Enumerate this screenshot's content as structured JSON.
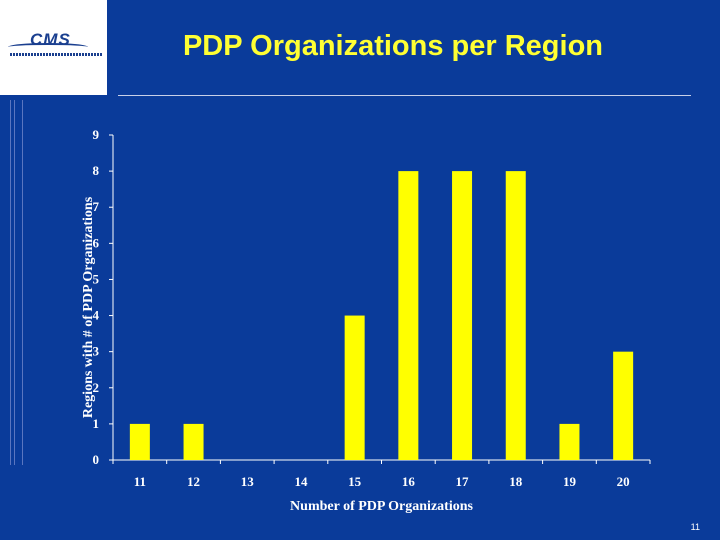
{
  "slide": {
    "title": "PDP Organizations per Region",
    "page_number": "11",
    "logo_text": "CMS"
  },
  "colors": {
    "background": "#0a3b9a",
    "title": "#ffff33",
    "bar": "#ffff00",
    "axis": "#ffffff"
  },
  "chart_data": {
    "type": "bar",
    "categories": [
      "11",
      "12",
      "13",
      "14",
      "15",
      "16",
      "17",
      "18",
      "19",
      "20"
    ],
    "values": [
      1,
      1,
      0,
      0,
      4,
      8,
      8,
      8,
      1,
      3
    ],
    "xlabel": "Number of PDP Organizations",
    "ylabel": "Regions with # of PDP Organizations",
    "ylim": [
      0,
      9
    ],
    "yticks": [
      0,
      1,
      2,
      3,
      4,
      5,
      6,
      7,
      8,
      9
    ],
    "grid": false,
    "legend": "none"
  }
}
